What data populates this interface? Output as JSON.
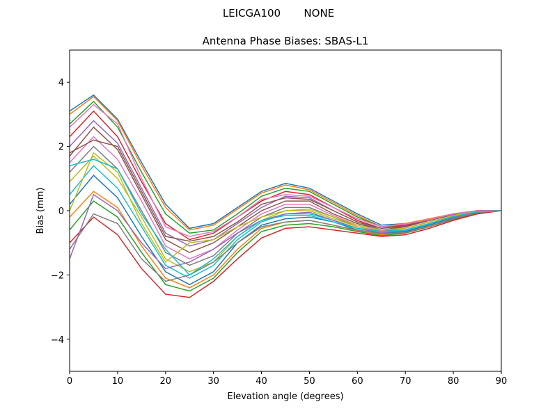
{
  "chart_data": {
    "type": "line",
    "suptitle": "LEICGA100       NONE",
    "title": "Antenna Phase Biases: SBAS-L1",
    "xlabel": "Elevation angle (degrees)",
    "ylabel": "Bias (mm)",
    "xlim": [
      0,
      90
    ],
    "ylim": [
      -5,
      5
    ],
    "xticks": [
      0,
      10,
      20,
      30,
      40,
      50,
      60,
      70,
      80,
      90
    ],
    "yticks": [
      -4,
      -2,
      0,
      2,
      4
    ],
    "ytick_labels": [
      "−4",
      "−2",
      "0",
      "2",
      "4"
    ],
    "grid": false,
    "colors": [
      "#1f77b4",
      "#ff7f0e",
      "#2ca02c",
      "#d62728",
      "#9467bd",
      "#8c564b",
      "#e377c2",
      "#7f7f7f",
      "#bcbd22",
      "#17becf"
    ],
    "x": [
      0,
      5,
      10,
      15,
      20,
      25,
      30,
      35,
      40,
      45,
      50,
      55,
      60,
      65,
      70,
      75,
      80,
      85,
      90
    ],
    "series": [
      {
        "values": [
          3.1,
          3.6,
          2.85,
          1.5,
          0.2,
          -0.55,
          -0.4,
          0.1,
          0.6,
          0.85,
          0.7,
          0.3,
          -0.1,
          -0.45,
          -0.4,
          -0.25,
          -0.1,
          0,
          0
        ]
      },
      {
        "values": [
          3.0,
          3.55,
          2.8,
          1.4,
          0.1,
          -0.6,
          -0.45,
          0.05,
          0.55,
          0.8,
          0.65,
          0.25,
          -0.15,
          -0.5,
          -0.4,
          -0.25,
          -0.1,
          0,
          0
        ]
      },
      {
        "values": [
          2.7,
          3.4,
          2.6,
          1.2,
          -0.1,
          -0.7,
          -0.6,
          -0.1,
          0.45,
          0.7,
          0.6,
          0.2,
          -0.2,
          -0.5,
          -0.45,
          -0.3,
          -0.1,
          0,
          0
        ]
      },
      {
        "values": [
          2.3,
          3.1,
          2.3,
          0.9,
          -0.4,
          -0.9,
          -0.7,
          -0.2,
          0.3,
          0.6,
          0.5,
          0.1,
          -0.3,
          -0.55,
          -0.45,
          -0.3,
          -0.1,
          0,
          0
        ]
      },
      {
        "values": [
          2.0,
          2.8,
          2.1,
          0.7,
          -0.7,
          -1.1,
          -0.9,
          -0.4,
          0.1,
          0.45,
          0.4,
          0.0,
          -0.35,
          -0.6,
          -0.5,
          -0.3,
          -0.12,
          0,
          0
        ]
      },
      {
        "values": [
          1.7,
          2.6,
          1.9,
          0.5,
          -0.9,
          -1.3,
          -1.0,
          -0.5,
          0.0,
          0.3,
          0.3,
          -0.1,
          -0.4,
          -0.6,
          -0.5,
          -0.3,
          -0.12,
          0,
          0
        ]
      },
      {
        "values": [
          1.5,
          2.3,
          1.6,
          0.3,
          -1.1,
          -1.5,
          -1.2,
          -0.6,
          -0.1,
          0.2,
          0.2,
          -0.15,
          -0.45,
          -0.62,
          -0.55,
          -0.35,
          -0.15,
          -0.02,
          0
        ]
      },
      {
        "values": [
          1.2,
          2.0,
          1.3,
          0.0,
          -1.3,
          -1.7,
          -1.4,
          -0.7,
          -0.2,
          0.1,
          0.1,
          -0.2,
          -0.5,
          -0.65,
          -0.55,
          -0.35,
          -0.15,
          -0.02,
          0
        ]
      },
      {
        "values": [
          0.9,
          1.7,
          1.0,
          -0.2,
          -1.5,
          -1.9,
          -1.6,
          -0.8,
          -0.3,
          0.0,
          0.0,
          -0.25,
          -0.5,
          -0.68,
          -0.6,
          -0.4,
          -0.18,
          -0.03,
          0
        ]
      },
      {
        "values": [
          0.5,
          1.4,
          0.7,
          -0.5,
          -1.7,
          -2.1,
          -1.7,
          -0.9,
          -0.35,
          -0.1,
          -0.1,
          -0.3,
          -0.55,
          -0.7,
          -0.62,
          -0.42,
          -0.2,
          -0.04,
          0
        ]
      },
      {
        "values": [
          0.2,
          1.1,
          0.4,
          -0.8,
          -1.9,
          -2.3,
          -1.9,
          -1.0,
          -0.45,
          -0.25,
          -0.2,
          -0.35,
          -0.6,
          -0.72,
          -0.65,
          -0.45,
          -0.22,
          -0.05,
          0
        ]
      },
      {
        "values": [
          -0.2,
          0.6,
          0.1,
          -1.1,
          -2.1,
          -2.4,
          -2.0,
          -1.2,
          -0.55,
          -0.35,
          -0.3,
          -0.45,
          -0.62,
          -0.75,
          -0.68,
          -0.48,
          -0.25,
          -0.06,
          0
        ]
      },
      {
        "values": [
          -0.6,
          0.3,
          -0.2,
          -1.3,
          -2.3,
          -2.5,
          -2.1,
          -1.3,
          -0.65,
          -0.45,
          -0.4,
          -0.5,
          -0.65,
          -0.78,
          -0.7,
          -0.5,
          -0.27,
          -0.08,
          0
        ]
      },
      {
        "values": [
          -1.0,
          -0.2,
          -0.75,
          -1.8,
          -2.6,
          -2.7,
          -2.2,
          -1.5,
          -0.85,
          -0.55,
          -0.5,
          -0.6,
          -0.7,
          -0.8,
          -0.75,
          -0.55,
          -0.3,
          -0.1,
          0
        ]
      },
      {
        "values": [
          -1.5,
          0.5,
          0.0,
          -1.0,
          -1.8,
          -1.6,
          -1.2,
          -0.7,
          -0.3,
          -0.1,
          -0.05,
          -0.3,
          -0.55,
          -0.7,
          -0.6,
          -0.4,
          -0.2,
          -0.05,
          0
        ]
      },
      {
        "values": [
          1.8,
          2.2,
          2.0,
          0.6,
          -0.8,
          -0.95,
          -0.8,
          -0.35,
          0.2,
          0.4,
          0.35,
          0.0,
          -0.35,
          -0.55,
          -0.48,
          -0.3,
          -0.1,
          0,
          0
        ]
      },
      {
        "values": [
          2.6,
          3.3,
          2.7,
          1.0,
          -0.5,
          -0.8,
          -0.65,
          -0.2,
          0.35,
          0.5,
          0.45,
          0.1,
          -0.25,
          -0.5,
          -0.42,
          -0.28,
          -0.1,
          0,
          0
        ]
      },
      {
        "values": [
          -1.2,
          -0.1,
          -0.4,
          -1.5,
          -2.2,
          -2.0,
          -1.6,
          -1.0,
          -0.5,
          -0.35,
          -0.3,
          -0.45,
          -0.6,
          -0.72,
          -0.68,
          -0.5,
          -0.25,
          -0.06,
          0
        ]
      },
      {
        "values": [
          0.0,
          1.8,
          1.2,
          -0.4,
          -1.6,
          -1.0,
          -0.9,
          -0.5,
          -0.2,
          0.0,
          0.05,
          -0.2,
          -0.45,
          -0.6,
          -0.55,
          -0.35,
          -0.15,
          -0.03,
          0
        ]
      },
      {
        "values": [
          1.4,
          1.6,
          1.3,
          -0.1,
          -1.2,
          -2.0,
          -1.5,
          -0.8,
          -0.3,
          -0.15,
          -0.15,
          -0.35,
          -0.55,
          -0.65,
          -0.6,
          -0.4,
          -0.18,
          -0.03,
          0
        ]
      }
    ]
  }
}
